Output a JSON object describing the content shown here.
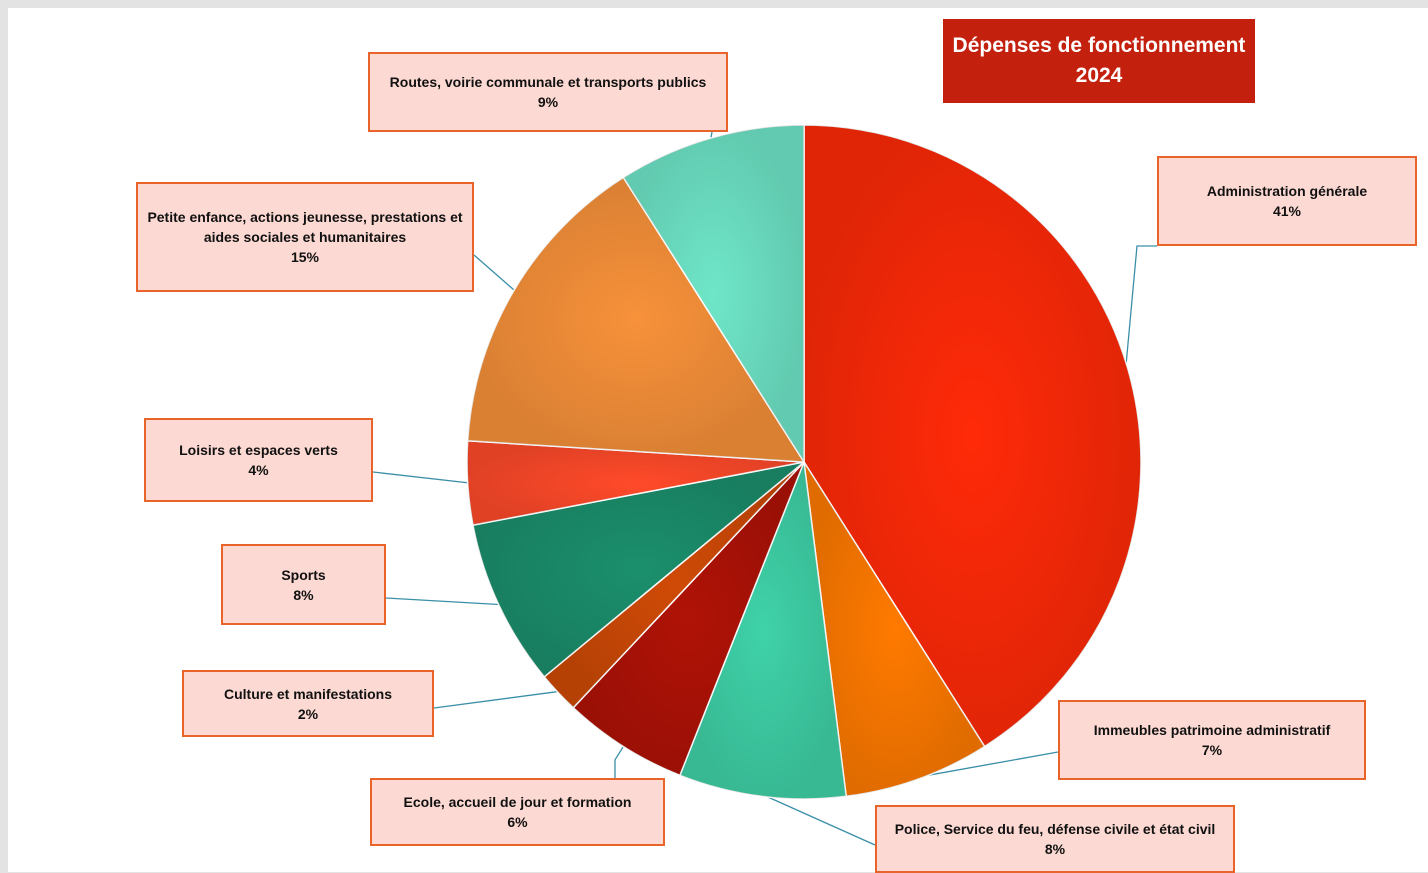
{
  "chart_data": {
    "type": "pie",
    "title": "Dépenses de fonctionnement",
    "subtitle": "2024",
    "slices": [
      {
        "label": "Administration générale",
        "value_label": "41%",
        "value": 41,
        "color": "#ff2a08"
      },
      {
        "label": "Immeubles patrimoine administratif",
        "value_label": "7%",
        "value": 7,
        "color": "#ff7a00"
      },
      {
        "label": "Police, Service du feu, défense civile et état civil",
        "value_label": "8%",
        "value": 8,
        "color": "#3fd2a8"
      },
      {
        "label": "Ecole, accueil de jour et formation",
        "value_label": "6%",
        "value": 6,
        "color": "#b01206"
      },
      {
        "label": "Culture et manifestations",
        "value_label": "2%",
        "value": 2,
        "color": "#cf4a06"
      },
      {
        "label": "Sports",
        "value_label": "8%",
        "value": 8,
        "color": "#1b8f6c"
      },
      {
        "label": "Loisirs et espaces verts",
        "value_label": "4%",
        "value": 4,
        "color": "#ff4a2a"
      },
      {
        "label": "Petite enfance, actions jeunesse, prestations et aides sociales et humanitaires",
        "value_label": "15%",
        "value": 15,
        "color": "#f7913a"
      },
      {
        "label": "Routes, voirie communale et transports publics",
        "value_label": "9%",
        "value": 9,
        "color": "#6fe6c8"
      }
    ]
  }
}
